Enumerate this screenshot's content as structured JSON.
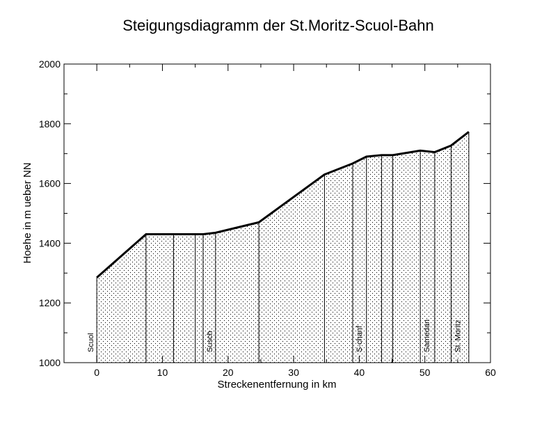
{
  "chart_data": {
    "type": "area",
    "title": "Steigungsdiagramm der St.Moritz-Scuol-Bahn",
    "x_label": "Streckenentfernung in km",
    "y_label": "Hoehe in m ueber NN",
    "x": [
      0,
      7.5,
      11.7,
      15.0,
      16.2,
      18.1,
      24.7,
      34.7,
      39.0,
      41.1,
      43.4,
      45.1,
      49.3,
      51.5,
      54.0,
      56.7
    ],
    "values": [
      1285,
      1430,
      1430,
      1430,
      1430,
      1435,
      1470,
      1630,
      1667,
      1690,
      1695,
      1695,
      1710,
      1705,
      1727,
      1773
    ],
    "color": "#000000",
    "xlim": [
      -5,
      60
    ],
    "xticks": [
      0,
      10,
      20,
      30,
      40,
      50,
      60
    ],
    "ylim": [
      1000,
      2000
    ],
    "yticks": [
      1000,
      1200,
      1400,
      1600,
      1800,
      2000
    ],
    "stations": [
      {
        "name": "Scuol",
        "km": 0
      },
      {
        "name": "Susch",
        "km": 16.2
      },
      {
        "name": "S-chanf",
        "km": 39.0
      },
      {
        "name": "Samedan",
        "km": 49.3
      },
      {
        "name": "St. Moritz",
        "km": 54.0
      }
    ]
  }
}
